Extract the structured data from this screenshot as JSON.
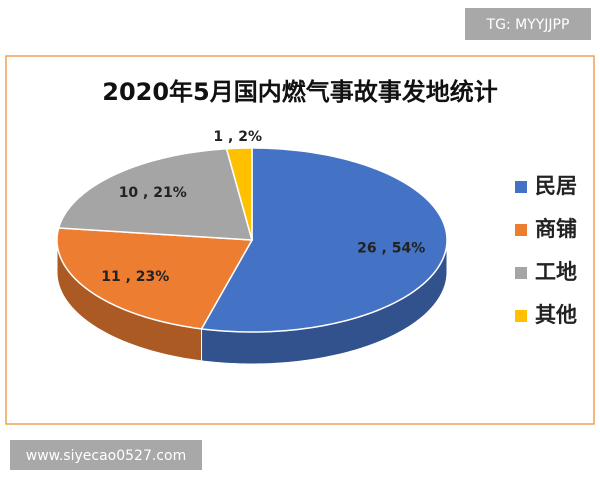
{
  "chart_data": {
    "type": "pie",
    "title": "2020年5月国内燃气事故事发地统计",
    "categories": [
      "民居",
      "商铺",
      "工地",
      "其他"
    ],
    "values": [
      26,
      11,
      10,
      1
    ],
    "value_labels": [
      "26 , 54%",
      "11 , 23%",
      "10 , 21%",
      "1 , 2%"
    ],
    "colors": [
      "#4472c4",
      "#ed7d31",
      "#a5a5a5",
      "#ffc000"
    ],
    "legend": "right"
  },
  "watermarks": [
    "TG: MYYJJPP",
    "www.siyecao0527.com"
  ]
}
